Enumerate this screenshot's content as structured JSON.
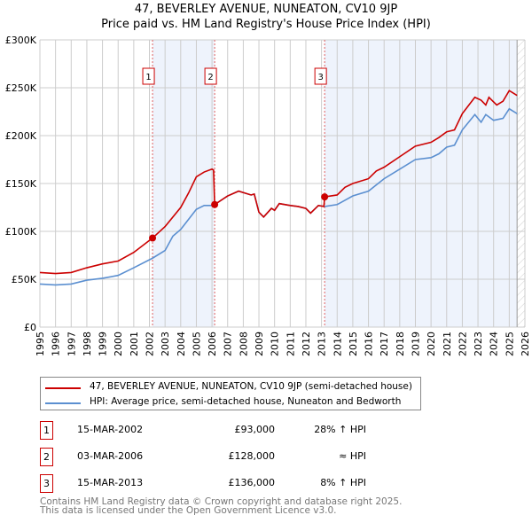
{
  "chart_data": {
    "type": "line",
    "title": "47, BEVERLEY AVENUE, NUNEATON, CV10 9JP",
    "subtitle": "Price paid vs. HM Land Registry's House Price Index (HPI)",
    "xlim": [
      1995,
      2026
    ],
    "ylim": [
      0,
      300000
    ],
    "yticks": [
      {
        "v": 0,
        "label": "£0"
      },
      {
        "v": 50000,
        "label": "£50K"
      },
      {
        "v": 100000,
        "label": "£100K"
      },
      {
        "v": 150000,
        "label": "£150K"
      },
      {
        "v": 200000,
        "label": "£200K"
      },
      {
        "v": 250000,
        "label": "£250K"
      },
      {
        "v": 300000,
        "label": "£300K"
      }
    ],
    "xticks": [
      "1995",
      "1996",
      "1997",
      "1998",
      "1999",
      "2000",
      "2001",
      "2002",
      "2003",
      "2004",
      "2005",
      "2006",
      "2007",
      "2008",
      "2009",
      "2010",
      "2011",
      "2012",
      "2013",
      "2014",
      "2015",
      "2016",
      "2017",
      "2018",
      "2019",
      "2020",
      "2021",
      "2022",
      "2023",
      "2024",
      "2025",
      "2026"
    ],
    "series": [
      {
        "name": "47, BEVERLEY AVENUE, NUNEATON, CV10 9JP (semi-detached house)",
        "color": "#cc0000",
        "points": [
          [
            1995,
            57
          ],
          [
            1996,
            56
          ],
          [
            1997,
            57
          ],
          [
            1998,
            62
          ],
          [
            1999,
            66
          ],
          [
            2000,
            69
          ],
          [
            2001,
            78
          ],
          [
            2002.2,
            93
          ],
          [
            2003,
            105
          ],
          [
            2004,
            125
          ],
          [
            2004.5,
            140
          ],
          [
            2005,
            157
          ],
          [
            2005.5,
            162
          ],
          [
            2006,
            165
          ],
          [
            2006.1,
            164
          ],
          [
            2006.17,
            128
          ],
          [
            2007,
            137
          ],
          [
            2007.7,
            142
          ],
          [
            2008.5,
            138
          ],
          [
            2008.7,
            139
          ],
          [
            2009,
            120
          ],
          [
            2009.3,
            115
          ],
          [
            2009.8,
            124
          ],
          [
            2010,
            122
          ],
          [
            2010.3,
            129
          ],
          [
            2011,
            127
          ],
          [
            2011.5,
            126
          ],
          [
            2012,
            124
          ],
          [
            2012.3,
            119
          ],
          [
            2012.8,
            127
          ],
          [
            2013.15,
            126
          ],
          [
            2013.2,
            136
          ],
          [
            2014,
            138
          ],
          [
            2014.5,
            146
          ],
          [
            2015,
            150
          ],
          [
            2016,
            155
          ],
          [
            2016.5,
            163
          ],
          [
            2017,
            167
          ],
          [
            2018,
            178
          ],
          [
            2019,
            189
          ],
          [
            2020,
            193
          ],
          [
            2020.5,
            198
          ],
          [
            2021,
            204
          ],
          [
            2021.5,
            206
          ],
          [
            2022,
            223
          ],
          [
            2022.8,
            240
          ],
          [
            2023.2,
            237
          ],
          [
            2023.5,
            232
          ],
          [
            2023.7,
            240
          ],
          [
            2024.2,
            232
          ],
          [
            2024.6,
            236
          ],
          [
            2025,
            247
          ],
          [
            2025.5,
            242
          ]
        ]
      },
      {
        "name": "HPI: Average price, semi-detached house, Nuneaton and Bedworth",
        "color": "#5b8fd0",
        "points": [
          [
            1995,
            45
          ],
          [
            1996,
            44
          ],
          [
            1997,
            45
          ],
          [
            1998,
            49
          ],
          [
            1999,
            51
          ],
          [
            2000,
            54
          ],
          [
            2001,
            62
          ],
          [
            2002.2,
            72
          ],
          [
            2003,
            80
          ],
          [
            2003.5,
            95
          ],
          [
            2004,
            102
          ],
          [
            2005,
            123
          ],
          [
            2005.5,
            127
          ],
          [
            2006,
            127
          ],
          [
            2006.17,
            128
          ],
          [
            2007,
            137
          ],
          [
            2007.7,
            142
          ],
          [
            2008.5,
            138
          ],
          [
            2008.7,
            139
          ],
          [
            2009,
            120
          ],
          [
            2009.3,
            115
          ],
          [
            2009.8,
            124
          ],
          [
            2010,
            122
          ],
          [
            2010.3,
            129
          ],
          [
            2011,
            127
          ],
          [
            2011.5,
            126
          ],
          [
            2012,
            124
          ],
          [
            2012.3,
            119
          ],
          [
            2012.8,
            127
          ],
          [
            2013.2,
            126
          ],
          [
            2014,
            128
          ],
          [
            2015,
            137
          ],
          [
            2016,
            142
          ],
          [
            2017,
            155
          ],
          [
            2018,
            165
          ],
          [
            2019,
            175
          ],
          [
            2020,
            177
          ],
          [
            2020.5,
            181
          ],
          [
            2021,
            188
          ],
          [
            2021.5,
            190
          ],
          [
            2022,
            206
          ],
          [
            2022.8,
            222
          ],
          [
            2023.2,
            214
          ],
          [
            2023.5,
            222
          ],
          [
            2024,
            216
          ],
          [
            2024.6,
            218
          ],
          [
            2025,
            228
          ],
          [
            2025.5,
            223
          ]
        ]
      }
    ],
    "sales": [
      {
        "id": "1",
        "x": 2002.2,
        "y": 93
      },
      {
        "id": "2",
        "x": 2006.17,
        "y": 128
      },
      {
        "id": "3",
        "x": 2013.2,
        "y": 136
      }
    ],
    "shaded": [
      [
        2002.2,
        2006.17
      ],
      [
        2013.2,
        2025.5
      ]
    ],
    "forecast_from": 2025.5
  },
  "legend": [
    "47, BEVERLEY AVENUE, NUNEATON, CV10 9JP (semi-detached house)",
    "HPI: Average price, semi-detached house, Nuneaton and Bedworth"
  ],
  "transactions": [
    {
      "id": "1",
      "date": "15-MAR-2002",
      "price": "£93,000",
      "hpi": "28% ↑ HPI"
    },
    {
      "id": "2",
      "date": "03-MAR-2006",
      "price": "£128,000",
      "hpi": "≈ HPI"
    },
    {
      "id": "3",
      "date": "15-MAR-2013",
      "price": "£136,000",
      "hpi": "8% ↑ HPI"
    }
  ],
  "footer": [
    "Contains HM Land Registry data © Crown copyright and database right 2025.",
    "This data is licensed under the Open Government Licence v3.0."
  ]
}
